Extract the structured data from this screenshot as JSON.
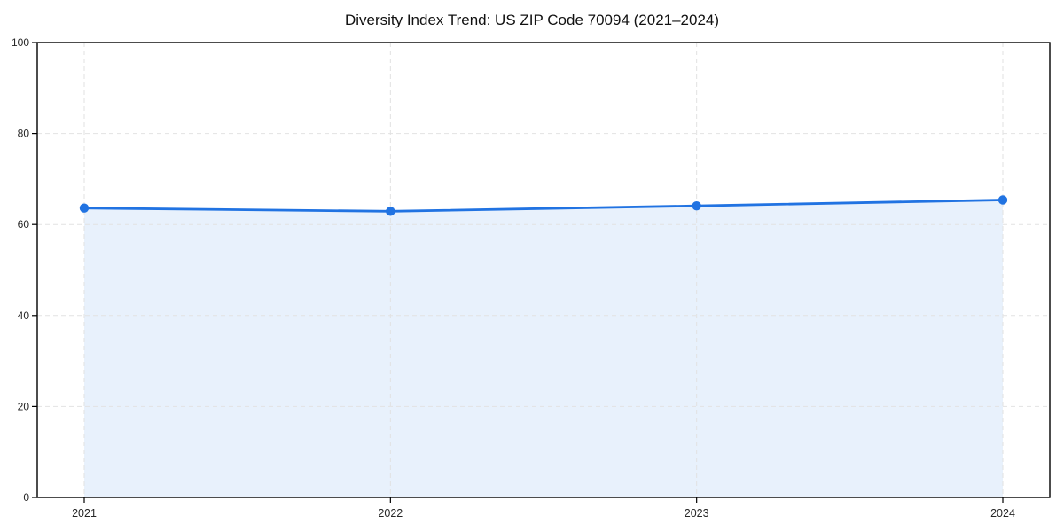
{
  "chart_data": {
    "type": "line",
    "title": "Diversity Index Trend: US ZIP Code 70094 (2021–2024)",
    "categories": [
      "2021",
      "2022",
      "2023",
      "2024"
    ],
    "series": [
      {
        "name": "Diversity Index",
        "values": [
          63.6,
          62.9,
          64.1,
          65.4
        ]
      }
    ],
    "xlabel": "",
    "ylabel": "",
    "ylim": [
      0,
      100
    ],
    "yticks": [
      0,
      20,
      40,
      60,
      80,
      100
    ],
    "grid": "dashed",
    "legend": "none",
    "area_fill": true,
    "marker": "circle",
    "colors": {
      "line": "#2173e2",
      "area": "#e8f1fc",
      "grid": "#e2e2e2",
      "spine": "#000000",
      "text": "#262626",
      "background": "#ffffff"
    }
  }
}
